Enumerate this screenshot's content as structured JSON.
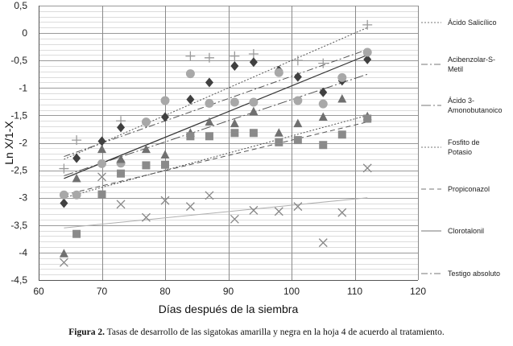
{
  "chart_data": {
    "type": "scatter",
    "xlabel": "Días después de la siembra",
    "ylabel": "Ln X/1-X",
    "xlim": [
      60,
      120
    ],
    "ylim": [
      -4.5,
      0.5
    ],
    "x_ticks": [
      60,
      70,
      80,
      90,
      100,
      110,
      120
    ],
    "y_ticks": [
      "0,5",
      "0",
      "-0,5",
      "-1",
      "-1,5",
      "-2",
      "-2,5",
      "-3",
      "-3,5",
      "-4",
      "-4,5"
    ],
    "grid": "horizontal minor and vertical major gridlines",
    "legend_position": "right",
    "series": [
      {
        "name": "Ácido Salicílico",
        "marker": "plus",
        "color": "#9a9a9a",
        "line": "dotted",
        "points": [
          [
            64,
            -2.47
          ],
          [
            66,
            -1.95
          ],
          [
            73,
            -1.6
          ],
          [
            84,
            -0.42
          ],
          [
            87,
            -0.45
          ],
          [
            91,
            -0.42
          ],
          [
            94,
            -0.38
          ],
          [
            101,
            -0.5
          ],
          [
            105,
            -0.55
          ],
          [
            112,
            0.15
          ]
        ],
        "fit": [
          [
            64,
            -2.3
          ],
          [
            112,
            0.1
          ]
        ]
      },
      {
        "name": "Acibenzolar-S-Metil",
        "marker": "diamond",
        "color": "#404040",
        "line": "dash-dot",
        "points": [
          [
            64,
            -3.1
          ],
          [
            66,
            -2.28
          ],
          [
            70,
            -1.97
          ],
          [
            73,
            -1.72
          ],
          [
            77,
            -1.63
          ],
          [
            80,
            -1.53
          ],
          [
            84,
            -1.21
          ],
          [
            87,
            -0.9
          ],
          [
            91,
            -0.6
          ],
          [
            94,
            -0.53
          ],
          [
            98,
            -0.68
          ],
          [
            101,
            -0.8
          ],
          [
            105,
            -1.08
          ],
          [
            108,
            -0.87
          ],
          [
            112,
            -0.48
          ]
        ],
        "fit": [
          [
            64,
            -2.25
          ],
          [
            112,
            -0.3
          ]
        ]
      },
      {
        "name": "Ácido 3-Amonobutanoico",
        "marker": "circle",
        "color": "#a8a8a8",
        "line": "long-dash-dot",
        "points": [
          [
            64,
            -2.95
          ],
          [
            66,
            -2.95
          ],
          [
            70,
            -2.38
          ],
          [
            73,
            -2.37
          ],
          [
            77,
            -1.62
          ],
          [
            80,
            -1.23
          ],
          [
            84,
            -0.74
          ],
          [
            87,
            -1.28
          ],
          [
            91,
            -1.26
          ],
          [
            94,
            -1.26
          ],
          [
            98,
            -0.72
          ],
          [
            101,
            -1.23
          ],
          [
            105,
            -1.29
          ],
          [
            108,
            -0.81
          ],
          [
            112,
            -0.35
          ]
        ],
        "fit": [
          [
            64,
            -2.6
          ],
          [
            112,
            -0.75
          ]
        ]
      },
      {
        "name": "Fosfito de Potasio",
        "marker": "triangle",
        "color": "#707070",
        "line": "dotted",
        "points": [
          [
            64,
            -4.02
          ],
          [
            66,
            -2.65
          ],
          [
            70,
            -2.12
          ],
          [
            73,
            -2.3
          ],
          [
            77,
            -2.12
          ],
          [
            80,
            -2.22
          ],
          [
            84,
            -1.82
          ],
          [
            87,
            -1.62
          ],
          [
            91,
            -1.65
          ],
          [
            94,
            -1.43
          ],
          [
            98,
            -1.82
          ],
          [
            101,
            -1.65
          ],
          [
            105,
            -1.53
          ],
          [
            108,
            -1.2
          ],
          [
            112,
            -1.52
          ]
        ],
        "fit": [
          [
            64,
            -3.0
          ],
          [
            112,
            -1.5
          ]
        ]
      },
      {
        "name": "Propiconazol",
        "marker": "square",
        "color": "#8a8a8a",
        "line": "dashed",
        "points": [
          [
            66,
            -3.66
          ],
          [
            70,
            -2.94
          ],
          [
            73,
            -2.56
          ],
          [
            77,
            -2.41
          ],
          [
            80,
            -2.4
          ],
          [
            84,
            -1.88
          ],
          [
            87,
            -1.88
          ],
          [
            91,
            -1.82
          ],
          [
            94,
            -1.82
          ],
          [
            98,
            -1.99
          ],
          [
            101,
            -1.95
          ],
          [
            105,
            -2.04
          ],
          [
            108,
            -1.85
          ],
          [
            112,
            -1.56
          ]
        ],
        "fit": [
          [
            64,
            -2.95
          ],
          [
            112,
            -1.62
          ]
        ]
      },
      {
        "name": "Clorotalonil",
        "marker": "none",
        "color": "#333333",
        "line": "solid",
        "points": [],
        "fit": [
          [
            64,
            -2.65
          ],
          [
            112,
            -0.4
          ]
        ]
      },
      {
        "name": "Testigo absoluto",
        "marker": "cross",
        "color": "#888888",
        "line": "light-solid",
        "points": [
          [
            64,
            -4.18
          ],
          [
            70,
            -2.62
          ],
          [
            73,
            -3.12
          ],
          [
            77,
            -3.36
          ],
          [
            80,
            -3.05
          ],
          [
            84,
            -3.16
          ],
          [
            87,
            -2.96
          ],
          [
            91,
            -3.39
          ],
          [
            94,
            -3.23
          ],
          [
            98,
            -3.25
          ],
          [
            101,
            -3.16
          ],
          [
            105,
            -3.82
          ],
          [
            108,
            -3.27
          ],
          [
            112,
            -2.46
          ]
        ],
        "fit": [
          [
            64,
            -3.55
          ],
          [
            112,
            -3.0
          ]
        ]
      }
    ]
  },
  "legend_items": [
    {
      "lines": [
        "Ácido Salicílico"
      ],
      "style": "dotted"
    },
    {
      "lines": [
        "Acibenzolar-S-",
        "Metil"
      ],
      "style": "dashdot"
    },
    {
      "lines": [
        "Ácido 3-",
        "Amonobutanoico"
      ],
      "style": "longdashdot"
    },
    {
      "lines": [
        "Fosfito de",
        "Potasio"
      ],
      "style": "dotted"
    },
    {
      "lines": [
        "Propiconazol"
      ],
      "style": "dashed"
    },
    {
      "lines": [
        "Clorotalonil"
      ],
      "style": "solid"
    },
    {
      "lines": [
        "Testigo absoluto"
      ],
      "style": "dashdot"
    }
  ],
  "caption": {
    "label": "Figura 2.",
    "text": "Tasas de desarrollo de las sigatokas amarilla y negra en la hoja 4 de acuerdo al tratamiento."
  }
}
